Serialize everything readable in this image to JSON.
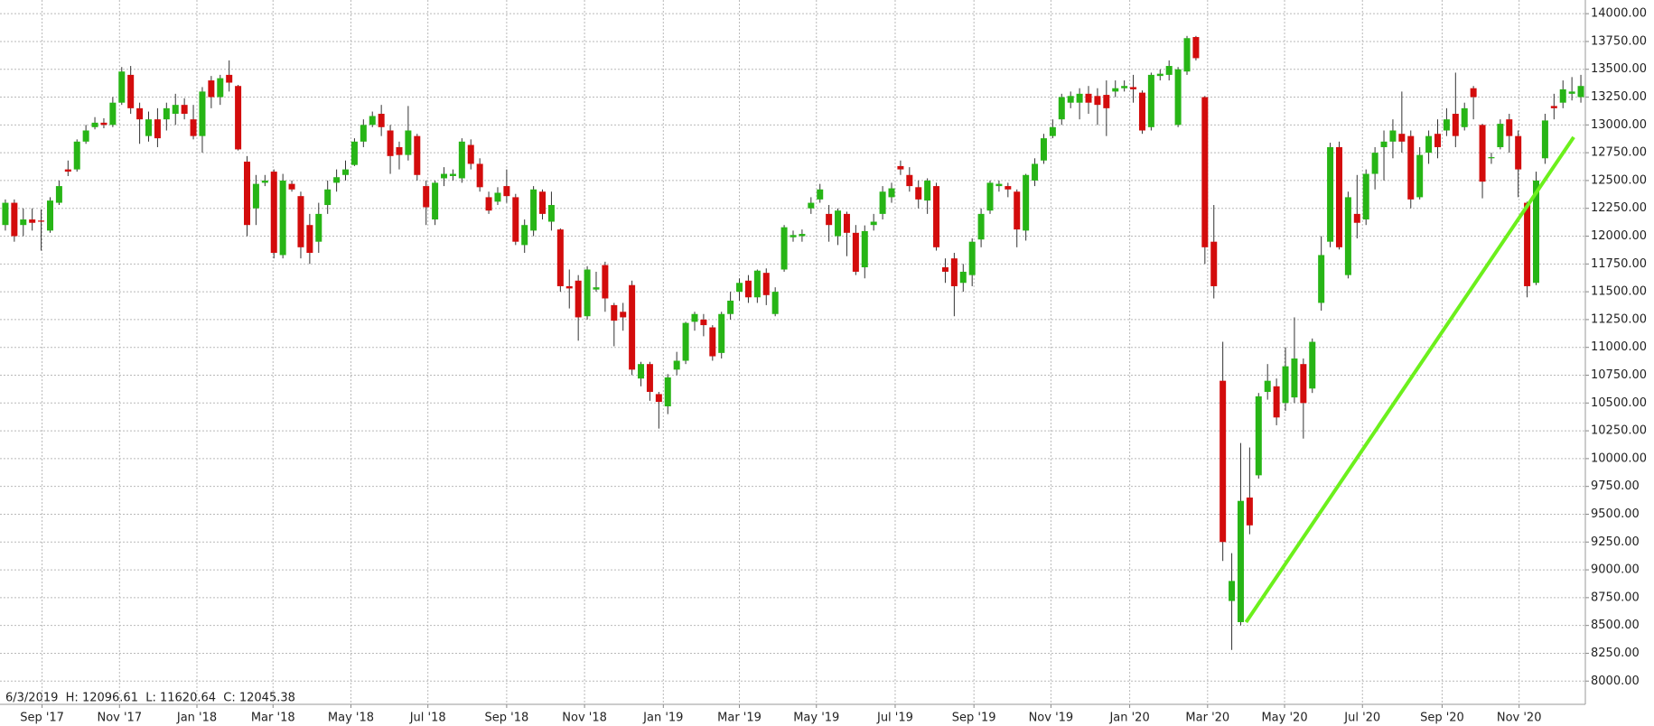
{
  "chart_data": {
    "type": "candlestick",
    "status_text": "6/3/2019  H: 12096.61  L: 11620.64  C: 12045.38",
    "up_color": "#27b516",
    "down_color": "#d30c0c",
    "grid": true,
    "series": [
      {
        "open": [
          12100,
          12300,
          12100,
          12150,
          12140,
          12050,
          12300,
          12600,
          12600,
          12850,
          12980,
          13020,
          13000,
          13200,
          13450,
          13150,
          12900,
          13050,
          13050,
          13100,
          13180,
          13050,
          12900,
          13400,
          13250,
          13450,
          13350,
          12670,
          12250,
          12480,
          12580,
          11830,
          12470,
          12360,
          12100,
          11950,
          12280,
          12480,
          12550,
          12640,
          12850,
          13000,
          13100,
          12950,
          12800,
          12730,
          12900,
          12450,
          12150,
          12520,
          12540,
          12520,
          12820,
          12650,
          12350,
          12310,
          12450,
          12350,
          11920,
          12050,
          12400,
          12130,
          12060,
          11550,
          11600,
          11280,
          11520,
          11740,
          11380,
          11320,
          11560,
          10720,
          10850,
          10580,
          10470,
          10800,
          10880,
          11230,
          11250,
          11180,
          10950,
          11300,
          11500,
          11600,
          11450,
          11670,
          11300,
          11700,
          11990,
          12000,
          12250,
          12330,
          12200,
          12000,
          12200,
          12030,
          11720,
          12100,
          12200,
          12350,
          12630,
          12550,
          12440,
          12320,
          12450,
          11720,
          11800,
          11580,
          11650,
          11970,
          12230,
          12450,
          12450,
          12400,
          12050,
          12500,
          12680,
          12900,
          13050,
          13200,
          13200,
          13280,
          13260,
          13270,
          13300,
          13330,
          13340,
          13290,
          12980,
          13440,
          13450,
          13000,
          13480,
          13790,
          13250,
          11950,
          10700,
          8720,
          8530,
          9650,
          9850,
          10600,
          10650,
          10500,
          10550,
          10850,
          10630,
          11400,
          11950,
          12800,
          11650,
          12200,
          12150,
          12560,
          12800,
          12850,
          12920,
          12900,
          12350,
          12750,
          12920,
          12950,
          13100,
          12980,
          13330,
          13000,
          12700,
          12800,
          13050,
          12900,
          12300,
          11580,
          12700,
          13170,
          13200,
          13280,
          13250
        ],
        "high": [
          12330,
          12330,
          12250,
          12250,
          12240,
          12350,
          12500,
          12680,
          12870,
          13000,
          13070,
          13060,
          13250,
          13520,
          13530,
          13200,
          13120,
          13150,
          13200,
          13280,
          13240,
          13180,
          13340,
          13440,
          13450,
          13580,
          13360,
          12720,
          12550,
          12550,
          12600,
          12560,
          12500,
          12400,
          12200,
          12300,
          12500,
          12600,
          12680,
          12880,
          13050,
          13120,
          13180,
          13000,
          12850,
          13170,
          12920,
          12500,
          12500,
          12620,
          12600,
          12880,
          12870,
          12700,
          12400,
          12440,
          12600,
          12380,
          12150,
          12450,
          12420,
          12400,
          12070,
          11700,
          11650,
          11730,
          11680,
          11770,
          11400,
          11400,
          11600,
          10870,
          10870,
          10600,
          10760,
          10960,
          11230,
          11320,
          11300,
          11200,
          11320,
          11500,
          11620,
          11650,
          11700,
          11710,
          11540,
          12100,
          12050,
          12060,
          12350,
          12470,
          12280,
          12250,
          12220,
          12100,
          12096.61,
          12200,
          12450,
          12480,
          12680,
          12620,
          12500,
          12520,
          12480,
          11800,
          11850,
          11750,
          11980,
          12250,
          12500,
          12500,
          12480,
          12420,
          12560,
          12700,
          12920,
          13050,
          13280,
          13300,
          13330,
          13350,
          13330,
          13400,
          13400,
          13400,
          13450,
          13310,
          13470,
          13500,
          13580,
          13520,
          13800,
          13800,
          13260,
          12280,
          11050,
          9150,
          10140,
          10100,
          10590,
          10850,
          10720,
          11000,
          11270,
          10900,
          11080,
          12000,
          12840,
          12850,
          12400,
          12550,
          12600,
          12800,
          12950,
          13050,
          13300,
          12950,
          12800,
          12950,
          13050,
          13150,
          13470,
          13200,
          13350,
          13010,
          12750,
          13050,
          13100,
          12950,
          12310,
          12580,
          13100,
          13280,
          13400,
          13430,
          13450
        ],
        "low": [
          12050,
          11950,
          12000,
          12050,
          11870,
          12030,
          12280,
          12540,
          12580,
          12830,
          12960,
          12970,
          12980,
          13180,
          13100,
          12830,
          12850,
          12800,
          12950,
          13000,
          13050,
          12870,
          12750,
          13150,
          13180,
          13300,
          12770,
          12000,
          12100,
          12450,
          11800,
          11800,
          12400,
          11800,
          11750,
          11850,
          12200,
          12400,
          12500,
          12630,
          12800,
          12980,
          12900,
          12560,
          12600,
          12680,
          12500,
          12100,
          12100,
          12450,
          12500,
          12480,
          12600,
          12400,
          12200,
          12280,
          12300,
          11920,
          11850,
          12000,
          12150,
          12050,
          11500,
          11350,
          11060,
          11250,
          11500,
          11320,
          11010,
          11150,
          10750,
          10650,
          10520,
          10270,
          10400,
          10750,
          10850,
          11150,
          11100,
          10880,
          10900,
          11250,
          11420,
          11400,
          11400,
          11380,
          11280,
          11680,
          11950,
          11950,
          12200,
          12300,
          11950,
          11920,
          11820,
          11650,
          11620.64,
          12050,
          12150,
          12300,
          12550,
          12400,
          12250,
          12200,
          11870,
          11580,
          11280,
          11500,
          11550,
          11900,
          12200,
          12400,
          12350,
          11900,
          11960,
          12450,
          12650,
          12880,
          13000,
          13150,
          13050,
          13100,
          13000,
          12900,
          13250,
          13300,
          13200,
          12920,
          12950,
          13400,
          13400,
          12980,
          13450,
          13580,
          11750,
          11440,
          9080,
          8280,
          8500,
          9320,
          9820,
          10530,
          10300,
          10430,
          10500,
          10180,
          10590,
          11330,
          11900,
          11880,
          11620,
          11980,
          12100,
          12420,
          12500,
          12700,
          12750,
          12250,
          12330,
          12650,
          12700,
          12900,
          12800,
          12950,
          13050,
          12340,
          12650,
          12780,
          12750,
          12350,
          11450,
          11560,
          12650,
          13050,
          13150,
          13220,
          13200
        ],
        "close": [
          12300,
          12000,
          12150,
          12120,
          12130,
          12320,
          12450,
          12580,
          12850,
          12950,
          13020,
          13000,
          13200,
          13480,
          13150,
          13050,
          13050,
          12880,
          13150,
          13180,
          13100,
          12900,
          13300,
          13250,
          13420,
          13380,
          12780,
          12100,
          12470,
          12500,
          11850,
          12500,
          12420,
          11900,
          11850,
          12200,
          12420,
          12530,
          12600,
          12850,
          13000,
          13080,
          12980,
          12720,
          12730,
          12950,
          12550,
          12260,
          12480,
          12560,
          12560,
          12850,
          12650,
          12440,
          12230,
          12390,
          12360,
          11950,
          12100,
          12420,
          12200,
          12280,
          11550,
          11530,
          11270,
          11700,
          11540,
          11440,
          11240,
          11270,
          10800,
          10850,
          10600,
          10510,
          10730,
          10880,
          11220,
          11300,
          11200,
          10920,
          11300,
          11420,
          11580,
          11450,
          11690,
          11470,
          11500,
          12080,
          12010,
          12020,
          12300,
          12420,
          12100,
          12230,
          12030,
          11680,
          12045.38,
          12130,
          12400,
          12430,
          12600,
          12450,
          12330,
          12500,
          11900,
          11680,
          11550,
          11680,
          11950,
          12200,
          12480,
          12470,
          12420,
          12060,
          12550,
          12650,
          12880,
          12980,
          13250,
          13260,
          13280,
          13200,
          13180,
          13150,
          13330,
          13350,
          13320,
          12950,
          13450,
          13460,
          13530,
          13500,
          13780,
          13600,
          11900,
          11550,
          9250,
          8900,
          9620,
          9400,
          10560,
          10700,
          10370,
          10830,
          10900,
          10500,
          11050,
          11830,
          12800,
          11900,
          12350,
          12120,
          12560,
          12750,
          12850,
          12950,
          12850,
          12330,
          12730,
          12900,
          12800,
          13050,
          12900,
          13150,
          13250,
          12490,
          12710,
          13010,
          12900,
          12600,
          11550,
          12500,
          13040,
          13150,
          13320,
          13300,
          13350
        ]
      }
    ],
    "trendline": {
      "color": "#6cf01c",
      "x": [
        138.6,
        175.2
      ],
      "y": [
        8530,
        12890
      ]
    },
    "xlim": [
      -0.6,
      176.5
    ],
    "xticks": [
      {
        "value": 4.1,
        "label": "Sep '17"
      },
      {
        "value": 12.75,
        "label": "Nov '17"
      },
      {
        "value": 21.4,
        "label": "Jan '18"
      },
      {
        "value": 29.9,
        "label": "Mar '18"
      },
      {
        "value": 38.6,
        "label": "May '18"
      },
      {
        "value": 47.2,
        "label": "Jul '18"
      },
      {
        "value": 56.0,
        "label": "Sep '18"
      },
      {
        "value": 64.7,
        "label": "Nov '18"
      },
      {
        "value": 73.5,
        "label": "Jan '19"
      },
      {
        "value": 82.0,
        "label": "Mar '19"
      },
      {
        "value": 90.6,
        "label": "May '19"
      },
      {
        "value": 99.4,
        "label": "Jul '19"
      },
      {
        "value": 108.2,
        "label": "Sep '19"
      },
      {
        "value": 116.8,
        "label": "Nov '19"
      },
      {
        "value": 125.6,
        "label": "Jan '20"
      },
      {
        "value": 134.3,
        "label": "Mar '20"
      },
      {
        "value": 142.9,
        "label": "May '20"
      },
      {
        "value": 151.6,
        "label": "Jul '20"
      },
      {
        "value": 160.5,
        "label": "Sep '20"
      },
      {
        "value": 169.1,
        "label": "Nov '20"
      }
    ],
    "ylim": [
      7791,
      14123
    ],
    "yticks": [
      {
        "value": 8000,
        "label": "8000.00"
      },
      {
        "value": 8250,
        "label": "8250.00"
      },
      {
        "value": 8500,
        "label": "8500.00"
      },
      {
        "value": 8750,
        "label": "8750.00"
      },
      {
        "value": 9000,
        "label": "9000.00"
      },
      {
        "value": 9250,
        "label": "9250.00"
      },
      {
        "value": 9500,
        "label": "9500.00"
      },
      {
        "value": 9750,
        "label": "9750.00"
      },
      {
        "value": 10000,
        "label": "10000.00"
      },
      {
        "value": 10250,
        "label": "10250.00"
      },
      {
        "value": 10500,
        "label": "10500.00"
      },
      {
        "value": 10750,
        "label": "10750.00"
      },
      {
        "value": 11000,
        "label": "11000.00"
      },
      {
        "value": 11250,
        "label": "11250.00"
      },
      {
        "value": 11500,
        "label": "11500.00"
      },
      {
        "value": 11750,
        "label": "11750.00"
      },
      {
        "value": 12000,
        "label": "12000.00"
      },
      {
        "value": 12250,
        "label": "12250.00"
      },
      {
        "value": 12500,
        "label": "12500.00"
      },
      {
        "value": 12750,
        "label": "12750.00"
      },
      {
        "value": 13000,
        "label": "13000.00"
      },
      {
        "value": 13250,
        "label": "13250.00"
      },
      {
        "value": 13500,
        "label": "13500.00"
      },
      {
        "value": 13750,
        "label": "13750.00"
      },
      {
        "value": 14000,
        "label": "14000.00"
      }
    ]
  }
}
